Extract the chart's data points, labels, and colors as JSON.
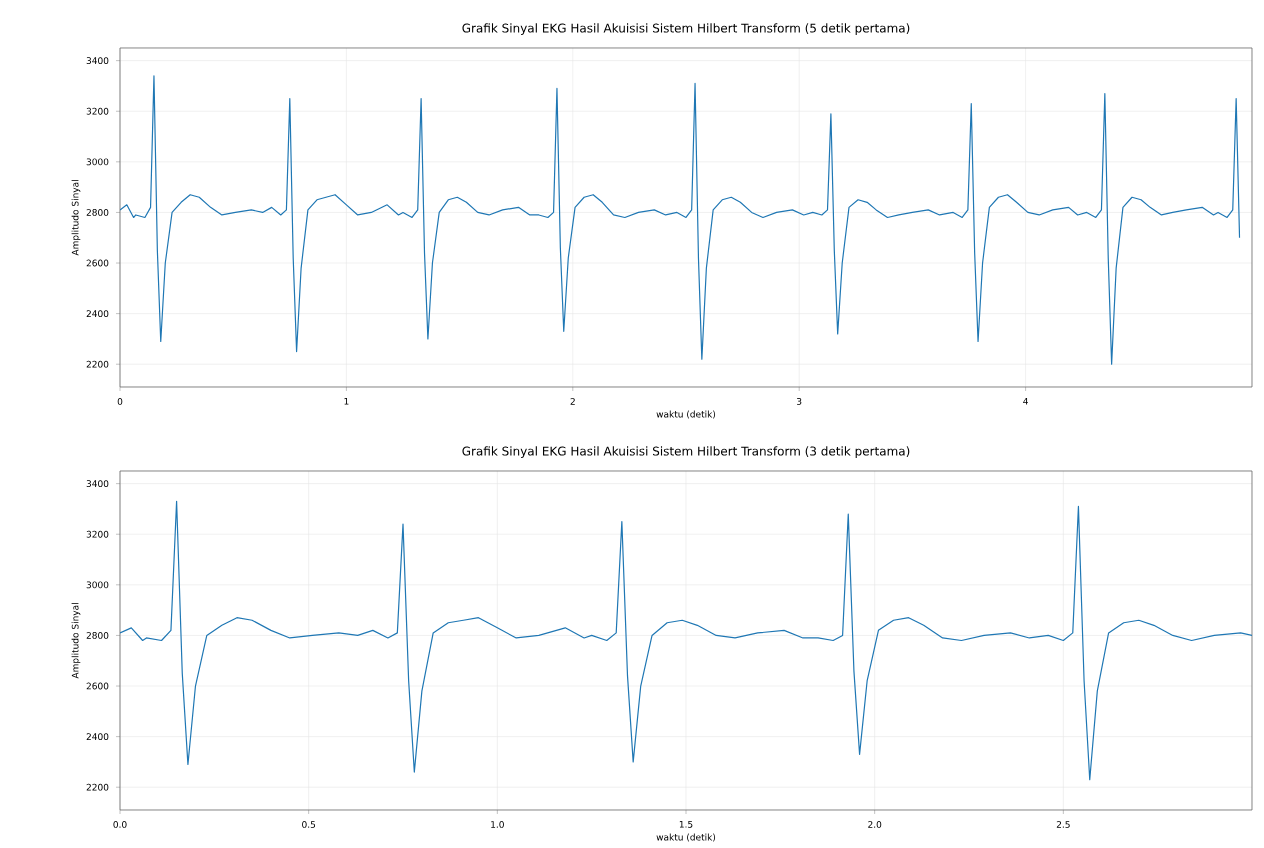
{
  "chart_data": [
    {
      "type": "line",
      "title": "Grafik Sinyal EKG Hasil Akuisisi Sistem Hilbert Transform (5 detik pertama)",
      "xlabel": "waktu (detik)",
      "ylabel": "Amplitudo Sinyal",
      "xlim": [
        0,
        5
      ],
      "ylim": [
        2110,
        3450
      ],
      "xticks": [
        0,
        1,
        2,
        3,
        4
      ],
      "yticks": [
        2200,
        2400,
        2600,
        2800,
        3000,
        3200,
        3400
      ],
      "grid": true,
      "series": [
        {
          "color": "#1f77b4",
          "x": [
            0,
            0.03,
            0.06,
            0.07,
            0.11,
            0.135,
            0.15,
            0.165,
            0.18,
            0.2,
            0.23,
            0.27,
            0.31,
            0.35,
            0.4,
            0.45,
            0.51,
            0.58,
            0.63,
            0.67,
            0.71,
            0.735,
            0.75,
            0.765,
            0.78,
            0.8,
            0.83,
            0.87,
            0.91,
            0.95,
            1.0,
            1.05,
            1.11,
            1.18,
            1.23,
            1.25,
            1.29,
            1.315,
            1.33,
            1.345,
            1.36,
            1.38,
            1.41,
            1.45,
            1.49,
            1.53,
            1.58,
            1.63,
            1.69,
            1.76,
            1.81,
            1.85,
            1.89,
            1.915,
            1.93,
            1.945,
            1.96,
            1.98,
            2.01,
            2.05,
            2.09,
            2.13,
            2.18,
            2.23,
            2.29,
            2.36,
            2.41,
            2.46,
            2.5,
            2.525,
            2.54,
            2.555,
            2.57,
            2.59,
            2.62,
            2.66,
            2.7,
            2.74,
            2.79,
            2.84,
            2.9,
            2.97,
            3.02,
            3.06,
            3.1,
            3.125,
            3.14,
            3.155,
            3.17,
            3.19,
            3.22,
            3.26,
            3.3,
            3.34,
            3.39,
            3.44,
            3.5,
            3.57,
            3.62,
            3.68,
            3.72,
            3.745,
            3.76,
            3.775,
            3.79,
            3.81,
            3.84,
            3.88,
            3.92,
            3.96,
            4.01,
            4.06,
            4.12,
            4.19,
            4.23,
            4.27,
            4.31,
            4.335,
            4.35,
            4.365,
            4.38,
            4.4,
            4.43,
            4.47,
            4.51,
            4.55,
            4.6,
            4.65,
            4.71,
            4.78,
            4.83,
            4.85,
            4.89,
            4.915,
            4.93,
            4.945
          ],
          "values": [
            2810,
            2830,
            2780,
            2790,
            2780,
            2820,
            3340,
            2650,
            2290,
            2600,
            2800,
            2840,
            2870,
            2860,
            2820,
            2790,
            2800,
            2810,
            2800,
            2820,
            2790,
            2810,
            3250,
            2620,
            2250,
            2580,
            2810,
            2850,
            2860,
            2870,
            2830,
            2790,
            2800,
            2830,
            2790,
            2800,
            2780,
            2810,
            3250,
            2640,
            2300,
            2600,
            2800,
            2850,
            2860,
            2840,
            2800,
            2790,
            2810,
            2820,
            2790,
            2790,
            2780,
            2800,
            3290,
            2660,
            2330,
            2620,
            2820,
            2860,
            2870,
            2840,
            2790,
            2780,
            2800,
            2810,
            2790,
            2800,
            2780,
            2810,
            3310,
            2620,
            2220,
            2580,
            2810,
            2850,
            2860,
            2840,
            2800,
            2780,
            2800,
            2810,
            2790,
            2800,
            2790,
            2810,
            3190,
            2650,
            2320,
            2600,
            2820,
            2850,
            2840,
            2810,
            2780,
            2790,
            2800,
            2810,
            2790,
            2800,
            2780,
            2810,
            3230,
            2640,
            2290,
            2600,
            2820,
            2860,
            2870,
            2840,
            2800,
            2790,
            2810,
            2820,
            2790,
            2800,
            2780,
            2810,
            3270,
            2620,
            2200,
            2580,
            2820,
            2860,
            2850,
            2820,
            2790,
            2800,
            2810,
            2820,
            2790,
            2800,
            2780,
            2810,
            3250,
            2700
          ]
        }
      ]
    },
    {
      "type": "line",
      "title": "Grafik Sinyal EKG Hasil Akuisisi Sistem Hilbert Transform (3 detik pertama)",
      "xlabel": "waktu (detik)",
      "ylabel": "Amplitudo Sinyal",
      "xlim": [
        0,
        3
      ],
      "ylim": [
        2110,
        3450
      ],
      "xticks": [
        {
          "value": 0,
          "label": "0.0"
        },
        {
          "value": 0.5,
          "label": "0.5"
        },
        {
          "value": 1,
          "label": "1.0"
        },
        {
          "value": 1.5,
          "label": "1.5"
        },
        {
          "value": 2,
          "label": "2.0"
        },
        {
          "value": 2.5,
          "label": "2.5"
        }
      ],
      "yticks": [
        2200,
        2400,
        2600,
        2800,
        3000,
        3200,
        3400
      ],
      "grid": true,
      "series": [
        {
          "color": "#1f77b4",
          "x": [
            0,
            0.03,
            0.06,
            0.07,
            0.11,
            0.135,
            0.15,
            0.165,
            0.18,
            0.2,
            0.23,
            0.27,
            0.31,
            0.35,
            0.4,
            0.45,
            0.51,
            0.58,
            0.63,
            0.67,
            0.71,
            0.735,
            0.75,
            0.765,
            0.78,
            0.8,
            0.83,
            0.87,
            0.91,
            0.95,
            1.0,
            1.05,
            1.11,
            1.18,
            1.23,
            1.25,
            1.29,
            1.315,
            1.33,
            1.345,
            1.36,
            1.38,
            1.41,
            1.45,
            1.49,
            1.53,
            1.58,
            1.63,
            1.69,
            1.76,
            1.81,
            1.85,
            1.89,
            1.915,
            1.93,
            1.945,
            1.96,
            1.98,
            2.01,
            2.05,
            2.09,
            2.13,
            2.18,
            2.23,
            2.29,
            2.36,
            2.41,
            2.46,
            2.5,
            2.525,
            2.54,
            2.555,
            2.57,
            2.59,
            2.62,
            2.66,
            2.7,
            2.74,
            2.79,
            2.84,
            2.9,
            2.97,
            3.0
          ],
          "values": [
            2810,
            2830,
            2780,
            2790,
            2780,
            2820,
            3330,
            2650,
            2290,
            2600,
            2800,
            2840,
            2870,
            2860,
            2820,
            2790,
            2800,
            2810,
            2800,
            2820,
            2790,
            2810,
            3240,
            2620,
            2260,
            2580,
            2810,
            2850,
            2860,
            2870,
            2830,
            2790,
            2800,
            2830,
            2790,
            2800,
            2780,
            2810,
            3250,
            2640,
            2300,
            2600,
            2800,
            2850,
            2860,
            2840,
            2800,
            2790,
            2810,
            2820,
            2790,
            2790,
            2780,
            2800,
            3280,
            2660,
            2330,
            2620,
            2820,
            2860,
            2870,
            2840,
            2790,
            2780,
            2800,
            2810,
            2790,
            2800,
            2780,
            2810,
            3310,
            2620,
            2230,
            2580,
            2810,
            2850,
            2860,
            2840,
            2800,
            2780,
            2800,
            2810,
            2800
          ]
        }
      ]
    }
  ]
}
